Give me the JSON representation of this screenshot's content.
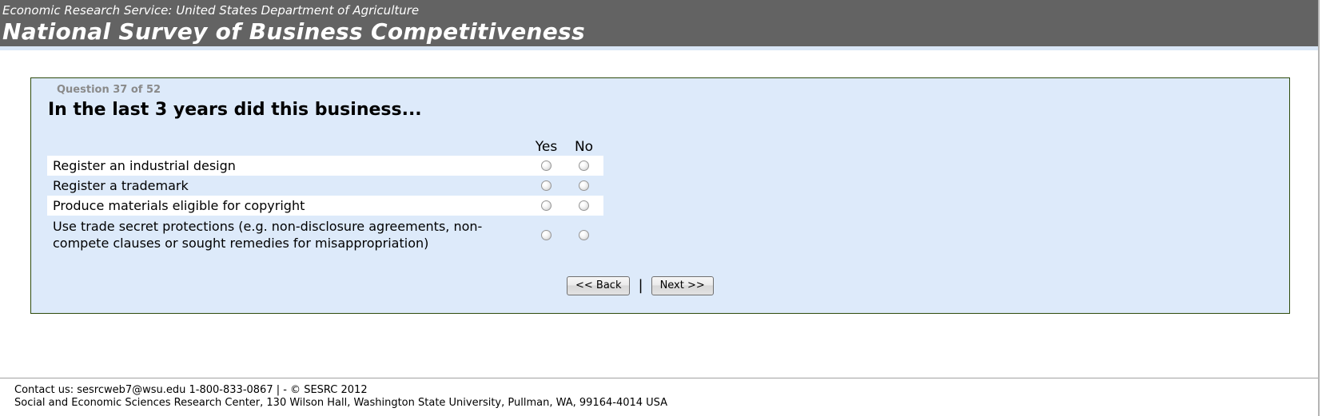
{
  "page": {
    "header": {
      "subtitle": "Economic Research Service: United States Department of Agriculture",
      "title": "National Survey of Business Competitiveness"
    },
    "question": {
      "progress": "Question 37 of 52",
      "prompt": "In the last 3 years did this business...",
      "columns": [
        "Yes",
        "No"
      ],
      "items": [
        "Register an industrial design",
        "Register a trademark",
        "Produce materials eligible for copyright",
        "Use trade secret protections (e.g. non-disclosure agreements, non-compete clauses or sought remedies for misappropriation)"
      ]
    },
    "nav": {
      "back": "<< Back",
      "divider": "|",
      "next": "Next >>"
    },
    "footer": {
      "line1": "Contact us: sesrcweb7@wsu.edu 1-800-833-0867 | - © SESRC 2012",
      "line2": "Social and Economic Sciences Research Center, 130 Wilson Hall, Washington State University, Pullman, WA, 99164-4014 USA"
    },
    "colors": {
      "header_bg": "#636363",
      "panel_bg": "#ddeafa",
      "panel_border": "#2e4b0c",
      "accent_strip": "#d9e6f6",
      "row_alt": "#ffffff",
      "progress_text": "#8a8a8a"
    }
  }
}
